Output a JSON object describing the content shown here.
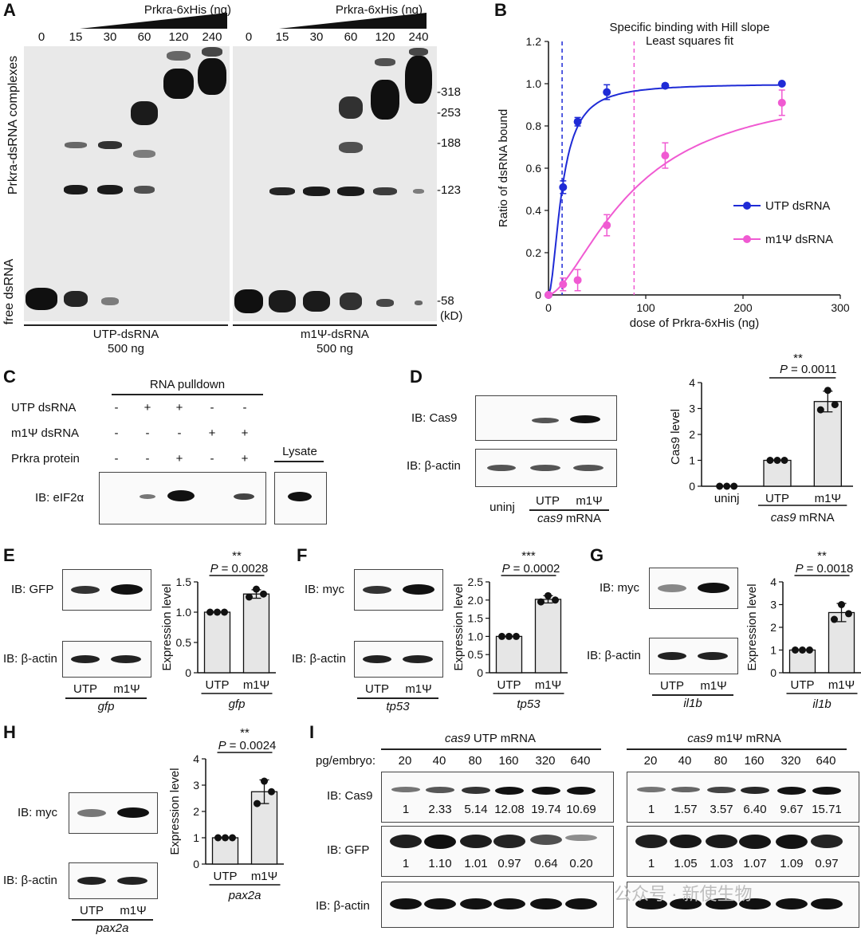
{
  "panelA": {
    "label": "A",
    "header_left": "Prkra-6xHis (ng)",
    "header_right": "Prkra-6xHis (ng)",
    "doses": [
      "0",
      "15",
      "30",
      "60",
      "120",
      "240"
    ],
    "side_top": "Prkra-dsRNA complexes",
    "side_bottom": "free dsRNA",
    "markers": [
      "-318",
      "-253",
      "-188",
      "-123",
      "-58"
    ],
    "marker_unit": "(kD)",
    "group_left": "UTP-dsRNA",
    "group_left_amount": "500 ng",
    "group_right": "m1Ψ-dsRNA",
    "group_right_amount": "500 ng"
  },
  "panelB": {
    "label": "B",
    "title_line1": "Specific binding with Hill slope",
    "title_line2": "Least squares fit",
    "legend1": "UTP dsRNA",
    "legend2": "m1Ψ dsRNA"
  },
  "chart_data": [
    {
      "type": "scatter",
      "title": "Specific binding with Hill slope Least squares fit",
      "xlabel": "dose of Prkra-6xHis (ng)",
      "ylabel": "Ratio of dsRNA bound",
      "xlim": [
        0,
        300
      ],
      "ylim": [
        0,
        1.2
      ],
      "xticks": [
        0,
        100,
        200,
        300
      ],
      "yticks": [
        0,
        0.2,
        0.4,
        0.6,
        0.8,
        1.0,
        1.2
      ],
      "legend": "right",
      "series": [
        {
          "name": "UTP dsRNA",
          "color": "#1f2bd6",
          "x": [
            0,
            15,
            30,
            60,
            120,
            240
          ],
          "y": [
            0,
            0.51,
            0.82,
            0.96,
            0.99,
            1.0
          ],
          "err": [
            0,
            0.03,
            0.02,
            0.035,
            0.01,
            0.005
          ],
          "kd": 14,
          "hill": 1.8
        },
        {
          "name": "m1Ψ dsRNA",
          "color": "#f05ad2",
          "x": [
            0,
            15,
            30,
            60,
            120,
            240
          ],
          "y": [
            0,
            0.05,
            0.07,
            0.33,
            0.66,
            0.91
          ],
          "err": [
            0,
            0.03,
            0.05,
            0.05,
            0.06,
            0.06
          ],
          "kd": 88,
          "hill": 1.6
        }
      ],
      "vlines": [
        14,
        88
      ]
    },
    {
      "type": "bar",
      "panel": "D",
      "ylabel": "Cas9 level",
      "categories": [
        "uninj",
        "UTP",
        "m1Ψ"
      ],
      "values": [
        0.0,
        1.0,
        3.27
      ],
      "points": [
        [
          0,
          0,
          0
        ],
        [
          1,
          1,
          1
        ],
        [
          2.95,
          3.7,
          3.15
        ]
      ],
      "err": [
        0,
        0,
        0.4
      ],
      "ylim": [
        0,
        4
      ],
      "yticks": [
        0,
        1,
        2,
        3,
        4
      ],
      "sig": "**",
      "p": "P = 0.0011"
    },
    {
      "type": "bar",
      "panel": "E",
      "ylabel": "Expression level",
      "categories": [
        "UTP",
        "m1Ψ"
      ],
      "values": [
        1.0,
        1.3
      ],
      "points": [
        [
          1,
          1,
          1
        ],
        [
          1.25,
          1.38,
          1.3
        ]
      ],
      "err": [
        0,
        0.07
      ],
      "ylim": [
        0,
        1.5
      ],
      "yticks": [
        0,
        0.5,
        1.0,
        1.5
      ],
      "sig": "**",
      "p": "P = 0.0028"
    },
    {
      "type": "bar",
      "panel": "F",
      "ylabel": "Expression level",
      "categories": [
        "UTP",
        "m1Ψ"
      ],
      "values": [
        1.0,
        2.02
      ],
      "points": [
        [
          1,
          1,
          1
        ],
        [
          1.95,
          2.12,
          2.0
        ]
      ],
      "err": [
        0,
        0.1
      ],
      "ylim": [
        0,
        2.5
      ],
      "yticks": [
        0,
        0.5,
        1.0,
        1.5,
        2.0,
        2.5
      ],
      "sig": "***",
      "p": "P = 0.0002"
    },
    {
      "type": "bar",
      "panel": "G",
      "ylabel": "Expression level",
      "categories": [
        "UTP",
        "m1Ψ"
      ],
      "values": [
        1.0,
        2.65
      ],
      "points": [
        [
          1,
          1,
          1
        ],
        [
          2.35,
          3.0,
          2.6
        ]
      ],
      "err": [
        0,
        0.4
      ],
      "ylim": [
        0,
        4
      ],
      "yticks": [
        0,
        1,
        2,
        3,
        4
      ],
      "sig": "**",
      "p": "P = 0.0018"
    },
    {
      "type": "bar",
      "panel": "H",
      "ylabel": "Expression level",
      "categories": [
        "UTP",
        "m1Ψ"
      ],
      "values": [
        1.0,
        2.75
      ],
      "points": [
        [
          1,
          1,
          1
        ],
        [
          2.3,
          3.15,
          2.75
        ]
      ],
      "err": [
        0,
        0.45
      ],
      "ylim": [
        0,
        4
      ],
      "yticks": [
        0,
        1,
        2,
        3,
        4
      ],
      "sig": "**",
      "p": "P = 0.0024"
    }
  ],
  "panelC": {
    "label": "C",
    "header": "RNA pulldown",
    "rows": [
      {
        "label": "UTP dsRNA",
        "signs": [
          "-",
          "+",
          "+",
          "-",
          "-"
        ]
      },
      {
        "label": "m1Ψ dsRNA",
        "signs": [
          "-",
          "-",
          "-",
          "+",
          "+"
        ]
      },
      {
        "label": "Prkra protein",
        "signs": [
          "-",
          "-",
          "+",
          "-",
          "+"
        ]
      }
    ],
    "lysate": "Lysate",
    "blot_label": "IB: eIF2α"
  },
  "panelD": {
    "label": "D",
    "blot1": "IB:  Cas9",
    "blot2": "IB: β-actin",
    "lanes": [
      "uninj",
      "UTP",
      "m1Ψ"
    ],
    "group": "cas9",
    "group_suffix": "mRNA",
    "bar_x1": "uninj",
    "bar_x2": "UTP",
    "bar_x3": "m1Ψ",
    "sig": "**",
    "p": "= 0.0011",
    "p_italic": "P"
  },
  "panelE": {
    "label": "E",
    "blot1": "IB: GFP",
    "blot2": "IB: β-actin",
    "lane1": "UTP",
    "lane2": "m1Ψ",
    "gene": "gfp",
    "sig": "**",
    "p_italic": "P",
    "p": "= 0.0028"
  },
  "panelF": {
    "label": "F",
    "blot1": "IB: myc",
    "blot2": "IB: β-actin",
    "lane1": "UTP",
    "lane2": "m1Ψ",
    "gene": "tp53",
    "sig": "***",
    "p_italic": "P",
    "p": "= 0.0002"
  },
  "panelG": {
    "label": "G",
    "blot1": "IB: myc",
    "blot2": "IB: β-actin",
    "lane1": "UTP",
    "lane2": "m1Ψ",
    "gene": "il1b",
    "sig": "**",
    "p_italic": "P",
    "p": "= 0.0018"
  },
  "panelH": {
    "label": "H",
    "blot1": "IB: myc",
    "blot2": "IB: β-actin",
    "lane1": "UTP",
    "lane2": "m1Ψ",
    "gene": "pax2a",
    "sig": "**",
    "p_italic": "P",
    "p": "= 0.0024"
  },
  "panelI": {
    "label": "I",
    "left_gene": "cas9",
    "left_title": "UTP mRNA",
    "right_gene": "cas9",
    "right_title": "m1Ψ mRNA",
    "row_label": "pg/embryo:",
    "doses": [
      "20",
      "40",
      "80",
      "160",
      "320",
      "640"
    ],
    "blot1": "IB: Cas9",
    "blot2": "IB: GFP",
    "blot3": "IB: β-actin",
    "cas9_left": [
      "1",
      "2.33",
      "5.14",
      "12.08",
      "19.74",
      "10.69"
    ],
    "cas9_right": [
      "1",
      "1.57",
      "3.57",
      "6.40",
      "9.67",
      "15.71"
    ],
    "gfp_left": [
      "1",
      "1.10",
      "1.01",
      "0.97",
      "0.64",
      "0.20"
    ],
    "gfp_right": [
      "1",
      "1.05",
      "1.03",
      "1.07",
      "1.09",
      "0.97"
    ]
  },
  "watermark": "公众号 · 新使生物"
}
